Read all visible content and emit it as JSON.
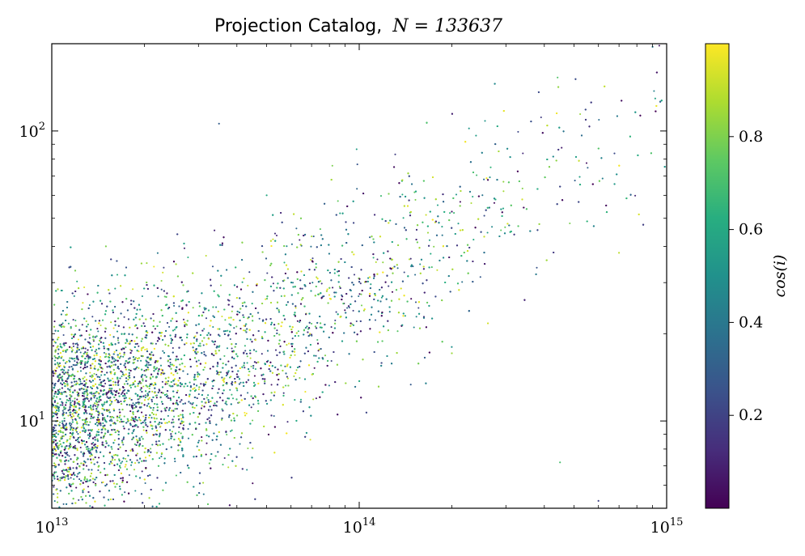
{
  "chart_data": {
    "type": "scatter",
    "title": "Projection Catalog, N = 133637",
    "title_prefix": "Projection Catalog,",
    "title_math": "N = 133637",
    "point_count": 133637,
    "x_scale": "log",
    "y_scale": "log",
    "xlim": [
      10000000000000.0,
      1000000000000000.0
    ],
    "ylim": [
      5,
      200
    ],
    "x_ticks": [
      {
        "value": 10000000000000.0,
        "base": "10",
        "exp": "13"
      },
      {
        "value": 100000000000000.0,
        "base": "10",
        "exp": "14"
      },
      {
        "value": 1000000000000000.0,
        "base": "10",
        "exp": "15"
      }
    ],
    "y_ticks": [
      {
        "value": 10,
        "base": "10",
        "exp": "1"
      },
      {
        "value": 100,
        "base": "10",
        "exp": "2"
      }
    ],
    "xlabel": "",
    "ylabel": "",
    "grid": false,
    "colormap": "viridis",
    "colorbar": {
      "label": "cos(i)",
      "range": [
        0,
        1
      ],
      "ticks": [
        "0.2",
        "0.4",
        "0.6",
        "0.8"
      ],
      "tick_values": [
        0.2,
        0.4,
        0.6,
        0.8
      ]
    },
    "trend": {
      "description": "power law relation, y rises with x",
      "points": [
        {
          "x": 10000000000000.0,
          "y": 10.5
        },
        {
          "x": 30000000000000.0,
          "y": 14
        },
        {
          "x": 100000000000000.0,
          "y": 28
        },
        {
          "x": 300000000000000.0,
          "y": 55
        },
        {
          "x": 1000000000000000.0,
          "y": 120
        }
      ]
    },
    "sampled_points": [
      {
        "x": 35000000000000.0,
        "y": 106,
        "c": 0.3
      },
      {
        "x": 600000000000000.0,
        "y": 5.3,
        "c": 0.2
      },
      {
        "x": 700000000000000.0,
        "y": 38,
        "c": 0.9
      },
      {
        "x": 450000000000000.0,
        "y": 7.2,
        "c": 0.7
      },
      {
        "x": 200000000000000.0,
        "y": 18,
        "c": 0.5
      },
      {
        "x": 15000000000000.0,
        "y": 40,
        "c": 0.8
      },
      {
        "x": 900000000000000.0,
        "y": 195,
        "c": 0.4
      },
      {
        "x": 50000000000000.0,
        "y": 60,
        "c": 0.6
      }
    ]
  }
}
